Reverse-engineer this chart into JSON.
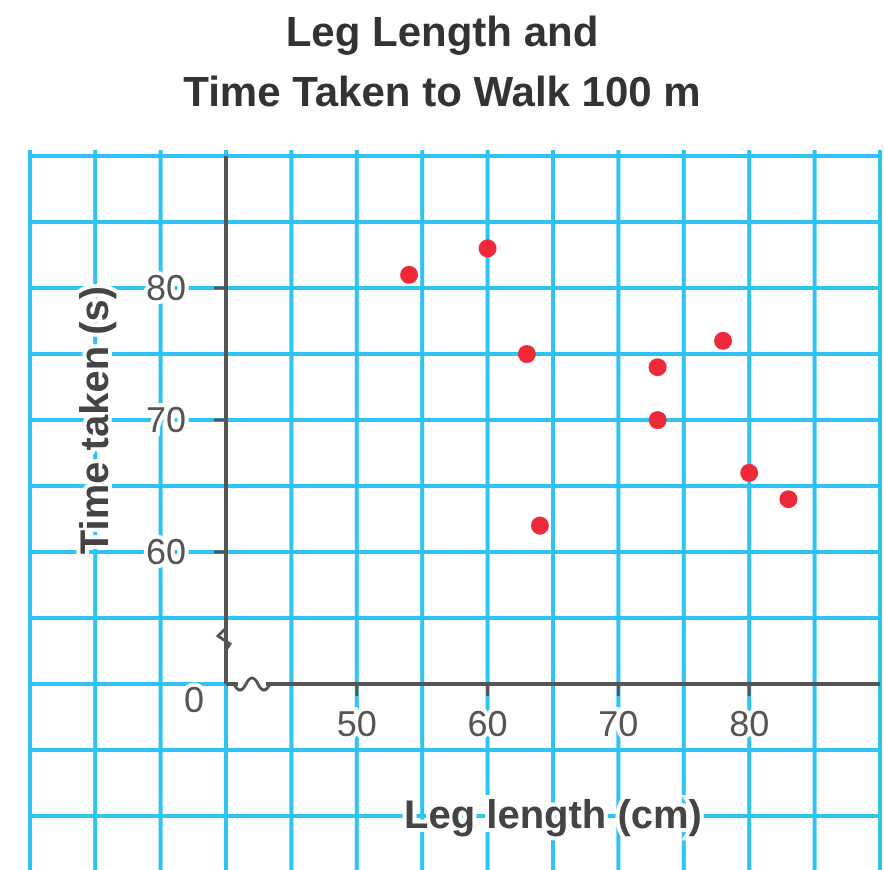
{
  "chart_data": {
    "type": "scatter",
    "title": "Leg Length and\nTime Taken to Walk 100 m",
    "xlabel": "Leg length (cm)",
    "ylabel": "Time taken (s)",
    "x": [
      54,
      60,
      63,
      64,
      73,
      73,
      78,
      80,
      83
    ],
    "series": [
      {
        "color": "#ee2a3a",
        "values": [
          81,
          83,
          75,
          62,
          74,
          70,
          76,
          66,
          64
        ]
      }
    ],
    "xlim": [
      40,
      90
    ],
    "xticks": [
      {
        "value": 40,
        "label": null
      },
      {
        "value": 45,
        "label": null
      },
      50,
      {
        "value": 55,
        "label": null
      },
      60,
      {
        "value": 65,
        "label": null
      },
      70,
      {
        "value": 75,
        "label": null
      },
      80,
      {
        "value": 85,
        "label": null
      },
      {
        "value": 90,
        "label": null
      }
    ],
    "ylim": [
      50,
      90
    ],
    "yticks": [
      {
        "value": 50,
        "label": null
      },
      {
        "value": 55,
        "label": null
      },
      60,
      {
        "value": 65,
        "label": null
      },
      70,
      {
        "value": 75,
        "label": null
      },
      80,
      {
        "value": 85,
        "label": null
      },
      {
        "value": 90,
        "label": null
      }
    ],
    "annotations": [
      "0"
    ],
    "grid": true,
    "marker": "circle"
  }
}
